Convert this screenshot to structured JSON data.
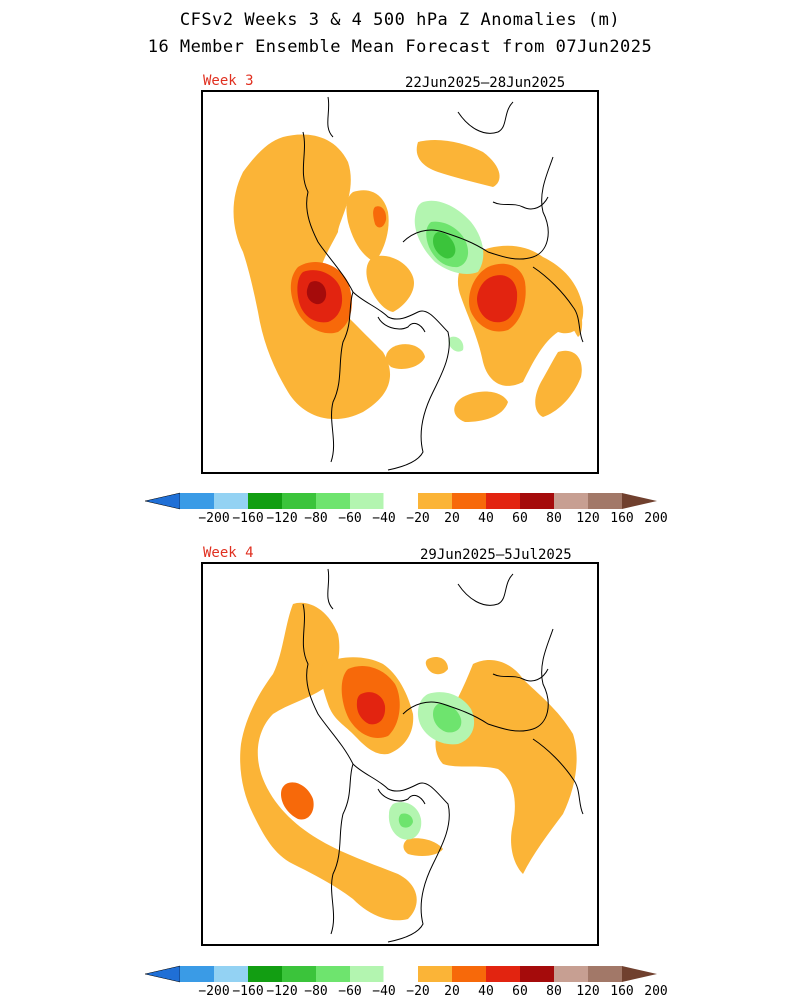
{
  "header": {
    "title_line1": "CFSv2 Weeks 3 & 4 500 hPa Z Anomalies (m)",
    "title_line2": "16 Member Ensemble Mean Forecast from 07Jun2025"
  },
  "panels": [
    {
      "label": "Week 3",
      "dates": "22Jun2025–28Jun2025"
    },
    {
      "label": "Week 4",
      "dates": "29Jun2025–5Jul2025"
    }
  ],
  "colorbar": {
    "labels": [
      "−200",
      "−160",
      "−120",
      "−80",
      "−60",
      "−40",
      "−20",
      "20",
      "40",
      "60",
      "80",
      "120",
      "160",
      "200"
    ],
    "colors": [
      "#1f6fd6",
      "#3a9be6",
      "#93d2f3",
      "#129e12",
      "#3bc43b",
      "#6ee46e",
      "#b3f5b0",
      "#ffffff",
      "#fbb437",
      "#f7690a",
      "#e22410",
      "#a50b0b",
      "#c79f92",
      "#a27868",
      "#70402e"
    ]
  },
  "colors": {
    "pos20": "#fbb437",
    "pos40": "#f7690a",
    "pos60": "#e22410",
    "pos80": "#a50b0b",
    "neg20": "#b3f5b0",
    "neg40": "#6ee46e",
    "neg60": "#3bc43b",
    "coast": "#000000",
    "label": "#e03020"
  }
}
